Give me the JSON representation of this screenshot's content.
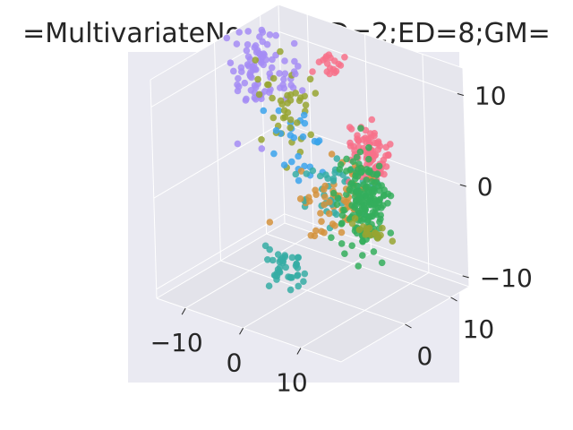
{
  "chart_data": {
    "type": "scatter",
    "projection": "3d",
    "title": "=MultivariateNormal;SD=2;ED=8;GM=",
    "xlabel": "",
    "ylabel": "",
    "zlabel": "",
    "xlim": [
      -15,
      17
    ],
    "ylim": [
      -14,
      14
    ],
    "zlim": [
      -11,
      13
    ],
    "x_ticks": [
      -10,
      0,
      10
    ],
    "y_ticks": [
      0,
      10
    ],
    "z_ticks": [
      -10,
      0,
      10
    ],
    "x_tick_labels": [
      "−10",
      "0",
      "10"
    ],
    "y_tick_labels": [
      "0",
      "10"
    ],
    "z_tick_labels": [
      "−10",
      "0",
      "10"
    ],
    "grid": true,
    "legend": "none",
    "series": [
      {
        "color": "#f77189",
        "center": [
          4,
          9,
          2
        ],
        "spread": [
          1.5,
          1.4,
          1.5
        ],
        "count": 90
      },
      {
        "color": "#f77189",
        "center": [
          -2,
          9,
          11
        ],
        "spread": [
          1.2,
          1.0,
          0.8
        ],
        "count": 18
      },
      {
        "color": "#a48cf4",
        "center": [
          -12,
          5,
          9
        ],
        "spread": [
          1.5,
          1.5,
          2.5
        ],
        "count": 70
      },
      {
        "color": "#a48cf4",
        "center": [
          -6,
          5,
          10
        ],
        "spread": [
          1.2,
          1.2,
          1.5
        ],
        "count": 18
      },
      {
        "color": "#97a431",
        "center": [
          -7,
          5,
          6
        ],
        "spread": [
          2.2,
          2.0,
          2.5
        ],
        "count": 40
      },
      {
        "color": "#97a431",
        "center": [
          13,
          -2,
          -1
        ],
        "spread": [
          1.5,
          0.6,
          0.4
        ],
        "count": 20
      },
      {
        "color": "#d3923c",
        "center": [
          3,
          2,
          -1
        ],
        "spread": [
          2.5,
          2.5,
          2.0
        ],
        "count": 55
      },
      {
        "color": "#34ae5c",
        "center": [
          9,
          2,
          0
        ],
        "spread": [
          1.6,
          1.6,
          2.5
        ],
        "count": 170
      },
      {
        "color": "#36ada4",
        "center": [
          1,
          5,
          -2
        ],
        "spread": [
          3,
          2.5,
          2.0
        ],
        "count": 45
      },
      {
        "color": "#36ada4",
        "center": [
          -3,
          -1,
          -9
        ],
        "spread": [
          1.5,
          1.2,
          1.2
        ],
        "count": 40
      },
      {
        "color": "#3ba3ec",
        "center": [
          -5,
          5,
          2
        ],
        "spread": [
          2.5,
          2.5,
          2.5
        ],
        "count": 25
      }
    ]
  }
}
